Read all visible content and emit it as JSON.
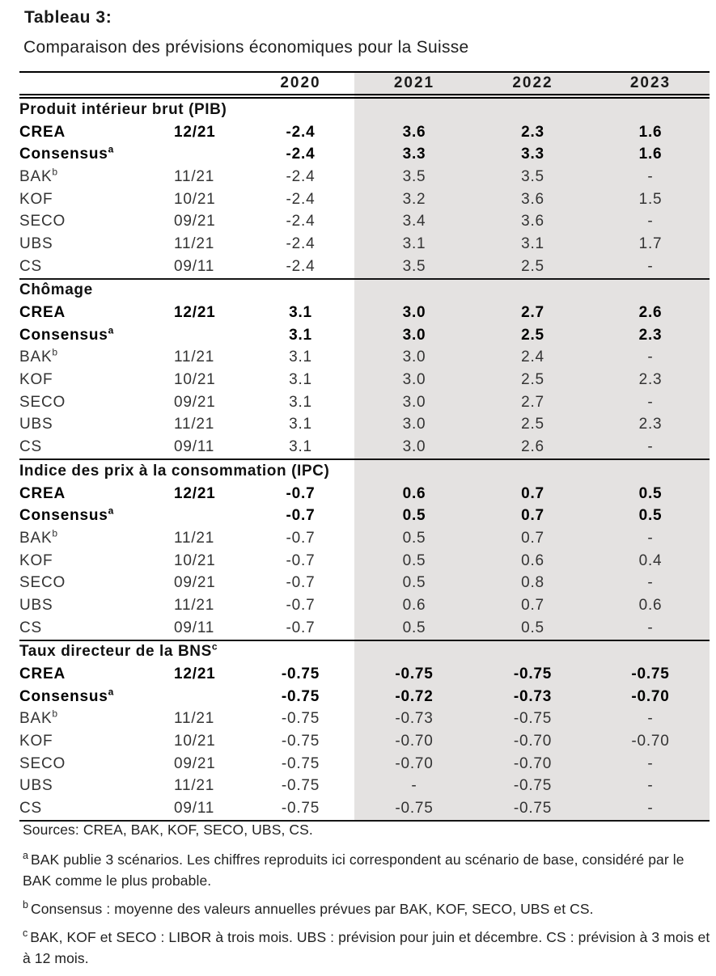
{
  "page": {
    "title": "Tableau 3:",
    "subtitle": "Comparaison des prévisions économiques pour la Suisse"
  },
  "table": {
    "year_headers": [
      "2020",
      "2021",
      "2022",
      "2023"
    ],
    "highlight_color": "#e4e2e1",
    "sections": [
      {
        "title": "Produit intérieur brut (PIB)",
        "title_sup": "",
        "rows": [
          {
            "name": "CREA",
            "sup": "",
            "date": "12/21",
            "bold": true,
            "values": [
              "-2.4",
              "3.6",
              "2.3",
              "1.6"
            ]
          },
          {
            "name": "Consensus",
            "sup": "a",
            "date": "",
            "bold": true,
            "values": [
              "-2.4",
              "3.3",
              "3.3",
              "1.6"
            ]
          },
          {
            "name": "BAK",
            "sup": "b",
            "date": "11/21",
            "bold": false,
            "values": [
              "-2.4",
              "3.5",
              "3.5",
              "-"
            ]
          },
          {
            "name": "KOF",
            "sup": "",
            "date": "10/21",
            "bold": false,
            "values": [
              "-2.4",
              "3.2",
              "3.6",
              "1.5"
            ]
          },
          {
            "name": "SECO",
            "sup": "",
            "date": "09/21",
            "bold": false,
            "values": [
              "-2.4",
              "3.4",
              "3.6",
              "-"
            ]
          },
          {
            "name": "UBS",
            "sup": "",
            "date": "11/21",
            "bold": false,
            "values": [
              "-2.4",
              "3.1",
              "3.1",
              "1.7"
            ]
          },
          {
            "name": "CS",
            "sup": "",
            "date": "09/11",
            "bold": false,
            "values": [
              "-2.4",
              "3.5",
              "2.5",
              "-"
            ]
          }
        ]
      },
      {
        "title": "Chômage",
        "title_sup": "",
        "rows": [
          {
            "name": "CREA",
            "sup": "",
            "date": "12/21",
            "bold": true,
            "values": [
              "3.1",
              "3.0",
              "2.7",
              "2.6"
            ]
          },
          {
            "name": "Consensus",
            "sup": "a",
            "date": "",
            "bold": true,
            "values": [
              "3.1",
              "3.0",
              "2.5",
              "2.3"
            ]
          },
          {
            "name": "BAK",
            "sup": "b",
            "date": "11/21",
            "bold": false,
            "values": [
              "3.1",
              "3.0",
              "2.4",
              "-"
            ]
          },
          {
            "name": "KOF",
            "sup": "",
            "date": "10/21",
            "bold": false,
            "values": [
              "3.1",
              "3.0",
              "2.5",
              "2.3"
            ]
          },
          {
            "name": "SECO",
            "sup": "",
            "date": "09/21",
            "bold": false,
            "values": [
              "3.1",
              "3.0",
              "2.7",
              "-"
            ]
          },
          {
            "name": "UBS",
            "sup": "",
            "date": "11/21",
            "bold": false,
            "values": [
              "3.1",
              "3.0",
              "2.5",
              "2.3"
            ]
          },
          {
            "name": "CS",
            "sup": "",
            "date": "09/11",
            "bold": false,
            "values": [
              "3.1",
              "3.0",
              "2.6",
              "-"
            ]
          }
        ]
      },
      {
        "title": "Indice des prix à la consommation (IPC)",
        "title_sup": "",
        "rows": [
          {
            "name": "CREA",
            "sup": "",
            "date": "12/21",
            "bold": true,
            "values": [
              "-0.7",
              "0.6",
              "0.7",
              "0.5"
            ]
          },
          {
            "name": "Consensus",
            "sup": "a",
            "date": "",
            "bold": true,
            "values": [
              "-0.7",
              "0.5",
              "0.7",
              "0.5"
            ]
          },
          {
            "name": "BAK",
            "sup": "b",
            "date": "11/21",
            "bold": false,
            "values": [
              "-0.7",
              "0.5",
              "0.7",
              "-"
            ]
          },
          {
            "name": "KOF",
            "sup": "",
            "date": "10/21",
            "bold": false,
            "values": [
              "-0.7",
              "0.5",
              "0.6",
              "0.4"
            ]
          },
          {
            "name": "SECO",
            "sup": "",
            "date": "09/21",
            "bold": false,
            "values": [
              "-0.7",
              "0.5",
              "0.8",
              "-"
            ]
          },
          {
            "name": "UBS",
            "sup": "",
            "date": "11/21",
            "bold": false,
            "values": [
              "-0.7",
              "0.6",
              "0.7",
              "0.6"
            ]
          },
          {
            "name": "CS",
            "sup": "",
            "date": "09/11",
            "bold": false,
            "values": [
              "-0.7",
              "0.5",
              "0.5",
              "-"
            ]
          }
        ]
      },
      {
        "title": "Taux directeur de la BNS",
        "title_sup": "c",
        "rows": [
          {
            "name": "CREA",
            "sup": "",
            "date": "12/21",
            "bold": true,
            "values": [
              "-0.75",
              "-0.75",
              "-0.75",
              "-0.75"
            ]
          },
          {
            "name": "Consensus",
            "sup": "a",
            "date": "",
            "bold": true,
            "values": [
              "-0.75",
              "-0.72",
              "-0.73",
              "-0.70"
            ]
          },
          {
            "name": "BAK",
            "sup": "b",
            "date": "11/21",
            "bold": false,
            "values": [
              "-0.75",
              "-0.73",
              "-0.75",
              "-"
            ]
          },
          {
            "name": "KOF",
            "sup": "",
            "date": "10/21",
            "bold": false,
            "values": [
              "-0.75",
              "-0.70",
              "-0.70",
              "-0.70"
            ]
          },
          {
            "name": "SECO",
            "sup": "",
            "date": "09/21",
            "bold": false,
            "values": [
              "-0.75",
              "-0.70",
              "-0.70",
              "-"
            ]
          },
          {
            "name": "UBS",
            "sup": "",
            "date": "11/21",
            "bold": false,
            "values": [
              "-0.75",
              "-",
              "-0.75",
              "-"
            ]
          },
          {
            "name": "CS",
            "sup": "",
            "date": "09/11",
            "bold": false,
            "values": [
              "-0.75",
              "-0.75",
              "-0.75",
              "-"
            ]
          }
        ]
      }
    ]
  },
  "footnotes": {
    "sources": "Sources: CREA, BAK, KOF, SECO, UBS, CS.",
    "notes": [
      {
        "sup": "a",
        "text": "BAK publie 3 scénarios. Les chiffres reproduits ici correspondent au scénario de base, considéré par le BAK comme le plus probable."
      },
      {
        "sup": "b",
        "text": "Consensus : moyenne des valeurs annuelles prévues par BAK, KOF, SECO, UBS et CS."
      },
      {
        "sup": "c",
        "text": "BAK, KOF et SECO : LIBOR à trois mois. UBS : prévision pour juin et décembre. CS : prévision à 3 mois et à 12 mois."
      }
    ]
  }
}
